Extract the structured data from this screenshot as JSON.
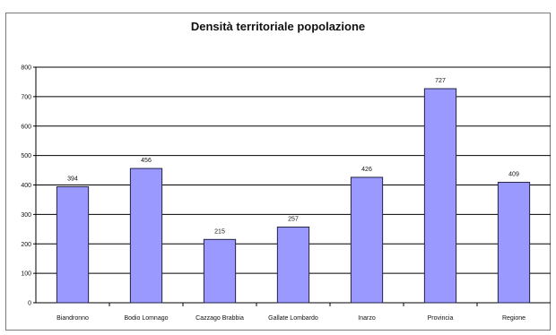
{
  "chart_data": {
    "type": "bar",
    "title": "Densità territoriale popolazione",
    "xlabel": "",
    "ylabel": "",
    "categories": [
      "Biandronno",
      "Bodio Lomnago",
      "Cazzago Brabbia",
      "Gallate Lombardo",
      "Inarzo",
      "Provincia",
      "Regione"
    ],
    "values": [
      394,
      456,
      215,
      257,
      426,
      727,
      409
    ],
    "value_labels": [
      "394",
      "456",
      "215",
      "257",
      "426",
      "727",
      "409"
    ],
    "ylim": [
      0,
      800
    ],
    "yticks": [
      "0",
      "100",
      "200",
      "300",
      "400",
      "500",
      "600",
      "700",
      "800"
    ],
    "grid": true,
    "legend": "none",
    "bar_color": "#9999ff",
    "bar_edge_color": "#222244"
  }
}
